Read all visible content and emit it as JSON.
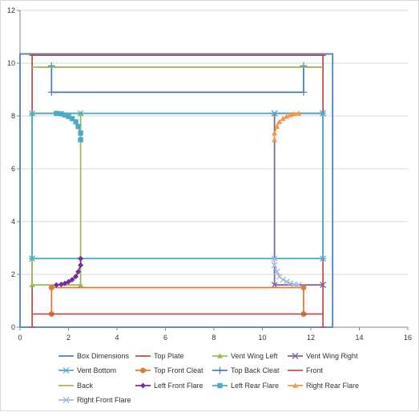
{
  "chart_data": {
    "type": "scatter",
    "title": "",
    "xlabel": "",
    "ylabel": "",
    "xlim": [
      0,
      16
    ],
    "ylim": [
      0,
      12
    ],
    "x_ticks": [
      0,
      2,
      4,
      6,
      8,
      10,
      12,
      14,
      16
    ],
    "y_ticks": [
      0,
      2,
      4,
      6,
      8,
      10,
      12
    ],
    "grid": "horizontal",
    "legend_position": "bottom",
    "series": [
      {
        "name": "Box Dimensions",
        "color": "#4f81bd",
        "marker": "none",
        "x": [
          0,
          12.9,
          12.9,
          0,
          0
        ],
        "y": [
          0,
          0,
          10.35,
          10.35,
          0
        ]
      },
      {
        "name": "Top Plate",
        "color": "#c0504d",
        "marker": "dash",
        "x": [
          0.5,
          0.5,
          12.5,
          12.5
        ],
        "y": [
          0,
          10.3,
          10.3,
          0
        ]
      },
      {
        "name": "Vent Wing  Left",
        "color": "#9bbb59",
        "marker": "triangle",
        "x": [
          0.5,
          2.5,
          2.5,
          0.5,
          0.5
        ],
        "y": [
          8.1,
          8.1,
          1.6,
          1.6,
          8.1
        ]
      },
      {
        "name": "Vent Wing  Right",
        "color": "#8064a2",
        "marker": "x",
        "x": [
          12.5,
          10.5,
          10.5,
          12.5
        ],
        "y": [
          8.1,
          8.1,
          1.6,
          1.6
        ]
      },
      {
        "name": "Vent Bottom",
        "color": "#4bacc6",
        "marker": "star",
        "x": [
          0.5,
          12.5,
          12.5,
          10.5,
          2.5,
          0.5,
          0.5
        ],
        "y": [
          2.6,
          2.6,
          8.1,
          8.1,
          8.1,
          8.1,
          2.6
        ]
      },
      {
        "name": "Top Front  Cleat",
        "color": "#e07b39",
        "marker": "circle",
        "x": [
          1.3,
          1.3,
          11.7,
          11.7
        ],
        "y": [
          0.5,
          1.5,
          1.5,
          0.5
        ]
      },
      {
        "name": "Top Back  Cleat",
        "color": "#4f81bd",
        "marker": "plus",
        "x": [
          1.3,
          1.3,
          11.7,
          11.7
        ],
        "y": [
          9.9,
          8.9,
          8.9,
          9.9
        ]
      },
      {
        "name": "Front",
        "color": "#c0504d",
        "marker": "none",
        "x": [
          0.5,
          12.5
        ],
        "y": [
          0.5,
          0.5
        ]
      },
      {
        "name": "Back",
        "color": "#9bbb59",
        "marker": "none",
        "x": [
          0.5,
          12.5
        ],
        "y": [
          9.85,
          9.85
        ]
      },
      {
        "name": "Left Front Flare",
        "color": "#7030a0",
        "marker": "diamond",
        "x": [
          1.5,
          1.7,
          1.85,
          2.0,
          2.15,
          2.3,
          2.4,
          2.5,
          2.5
        ],
        "y": [
          1.6,
          1.62,
          1.66,
          1.72,
          1.8,
          1.92,
          2.1,
          2.35,
          2.6
        ]
      },
      {
        "name": "Left Rear Flare",
        "color": "#4bacc6",
        "marker": "square",
        "x": [
          1.5,
          1.7,
          1.85,
          2.0,
          2.15,
          2.3,
          2.4,
          2.5,
          2.5
        ],
        "y": [
          8.1,
          8.08,
          8.04,
          7.98,
          7.9,
          7.78,
          7.6,
          7.35,
          7.1
        ]
      },
      {
        "name": "Right Rear Flare",
        "color": "#f79646",
        "marker": "triangle",
        "x": [
          11.5,
          11.3,
          11.15,
          11.0,
          10.85,
          10.7,
          10.6,
          10.5,
          10.5
        ],
        "y": [
          8.1,
          8.08,
          8.04,
          7.98,
          7.9,
          7.78,
          7.6,
          7.35,
          7.1
        ]
      },
      {
        "name": "Right Front Flare",
        "color": "#a5b8de",
        "marker": "x",
        "x": [
          11.5,
          11.3,
          11.15,
          11.0,
          10.85,
          10.7,
          10.6,
          10.5,
          10.5
        ],
        "y": [
          1.6,
          1.62,
          1.66,
          1.72,
          1.8,
          1.92,
          2.1,
          2.35,
          2.6
        ]
      }
    ]
  }
}
